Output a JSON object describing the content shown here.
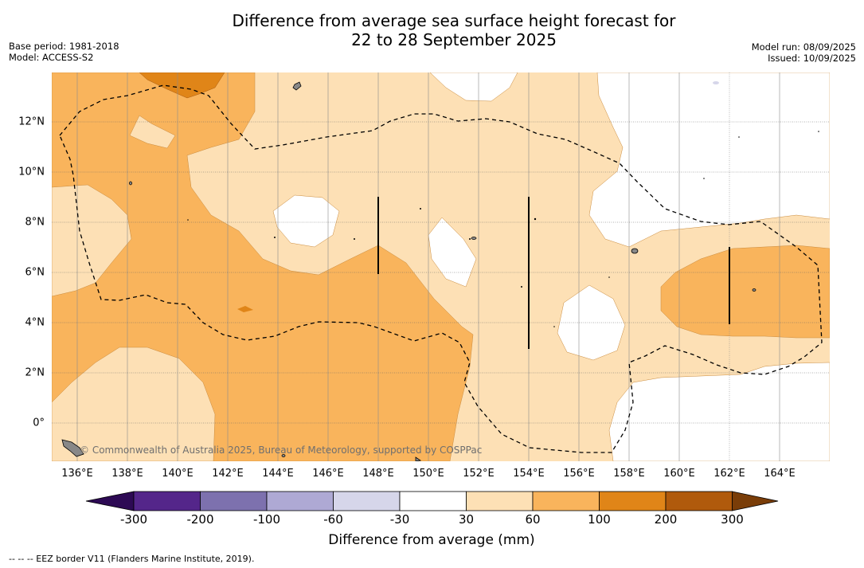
{
  "title_line1": "Difference from average sea surface height forecast for",
  "title_line2": "22 to 28 September 2025",
  "meta_left": [
    "Base period: 1981-2018",
    "Model: ACCESS-S2"
  ],
  "meta_right": [
    "Model run: 08/09/2025",
    "Issued: 10/09/2025"
  ],
  "x_ticks": [
    "136°E",
    "138°E",
    "140°E",
    "142°E",
    "144°E",
    "146°E",
    "148°E",
    "150°E",
    "152°E",
    "154°E",
    "156°E",
    "158°E",
    "160°E",
    "162°E",
    "164°E"
  ],
  "y_ticks": [
    "12°N",
    "10°N",
    "8°N",
    "6°N",
    "4°N",
    "2°N",
    "0°"
  ],
  "credit": "© Commonwealth of Australia 2025, Bureau of Meteorology, supported by COSPPac",
  "colorbar": {
    "title": "Difference from average (mm)",
    "labels": [
      "-300",
      "-200",
      "-100",
      "-60",
      "-30",
      "30",
      "60",
      "100",
      "200",
      "300"
    ],
    "colors": [
      "#2d0a54",
      "#54268a",
      "#7d71ae",
      "#aea9d4",
      "#d6d6ea",
      "#ffffff",
      "#fde0b5",
      "#f9b45c",
      "#e08518",
      "#b05a0c",
      "#7a3d08"
    ]
  },
  "colors": {
    "light_orange": "#fde0b5",
    "mid_orange": "#f9b45c",
    "dark_orange": "#e08518",
    "land": "#888888"
  },
  "footnote": "--  --  -- EEZ border V11 (Flanders Marine Institute, 2019)."
}
